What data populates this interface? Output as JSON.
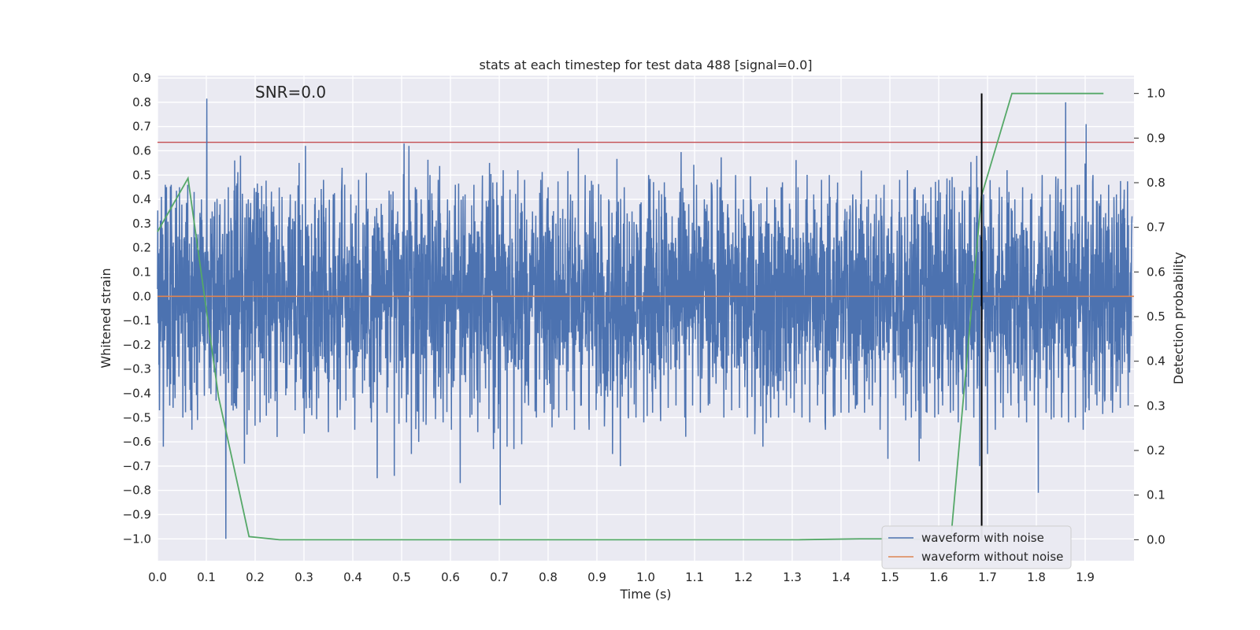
{
  "chart_data": {
    "type": "line",
    "title": "stats at each timestep for test data 488 [signal=0.0]",
    "xlabel": "Time (s)",
    "ylabel": "Whitened strain",
    "y2label": "Detection probability",
    "annotation": "SNR=0.0",
    "xlim": [
      0.0,
      2.0
    ],
    "ylim": [
      -1.09,
      0.91
    ],
    "y2lim": [
      -0.047,
      1.04
    ],
    "x_ticks": [
      "0.0",
      "0.1",
      "0.2",
      "0.3",
      "0.4",
      "0.5",
      "0.6",
      "0.7",
      "0.8",
      "0.9",
      "1.0",
      "1.1",
      "1.2",
      "1.3",
      "1.4",
      "1.5",
      "1.6",
      "1.7",
      "1.8",
      "1.9"
    ],
    "y_ticks": [
      "0.9",
      "0.8",
      "0.7",
      "0.6",
      "0.5",
      "0.4",
      "0.3",
      "0.2",
      "0.1",
      "0.0",
      "−0.1",
      "−0.2",
      "−0.3",
      "−0.4",
      "−0.5",
      "−0.6",
      "−0.7",
      "−0.8",
      "−0.9",
      "−1.0"
    ],
    "y2_ticks": [
      "1.0",
      "0.9",
      "0.8",
      "0.7",
      "0.6",
      "0.5",
      "0.4",
      "0.3",
      "0.2",
      "0.1",
      "0.0"
    ],
    "grid": true,
    "legend_position": "lower right",
    "threshold_line": {
      "y": 0.635,
      "color": "#c44e52"
    },
    "marker_line": {
      "x": 1.688,
      "color": "#000000",
      "y2_range": [
        0.0,
        1.0
      ]
    },
    "series": [
      {
        "name": "waveform with noise",
        "axis": "left",
        "color": "#4c72b0",
        "sample_rate": 2048,
        "points": [
          [
            0.0,
            0.03
          ],
          [
            0.004,
            -0.47
          ],
          [
            0.008,
            0.41
          ],
          [
            0.012,
            -0.62
          ],
          [
            0.016,
            0.46
          ],
          [
            0.022,
            -0.3
          ],
          [
            0.028,
            0.46
          ],
          [
            0.036,
            -0.42
          ],
          [
            0.045,
            0.45
          ],
          [
            0.052,
            -0.5
          ],
          [
            0.062,
            0.46
          ],
          [
            0.068,
            -0.47
          ],
          [
            0.075,
            0.43
          ],
          [
            0.082,
            -0.51
          ],
          [
            0.09,
            0.4
          ],
          [
            0.096,
            -0.41
          ],
          [
            0.101,
            0.815
          ],
          [
            0.106,
            -0.38
          ],
          [
            0.112,
            0.35
          ],
          [
            0.12,
            -0.43
          ],
          [
            0.128,
            0.38
          ],
          [
            0.136,
            -0.32
          ],
          [
            0.14,
            -1.0
          ],
          [
            0.145,
            0.45
          ],
          [
            0.152,
            -0.45
          ],
          [
            0.158,
            0.56
          ],
          [
            0.164,
            -0.38
          ],
          [
            0.17,
            0.58
          ],
          [
            0.178,
            -0.69
          ],
          [
            0.186,
            0.4
          ],
          [
            0.194,
            -0.35
          ],
          [
            0.202,
            0.43
          ],
          [
            0.21,
            -0.52
          ],
          [
            0.218,
            0.38
          ],
          [
            0.228,
            -0.44
          ],
          [
            0.238,
            0.37
          ],
          [
            0.245,
            -0.58
          ],
          [
            0.255,
            0.41
          ],
          [
            0.265,
            -0.38
          ],
          [
            0.272,
            0.42
          ],
          [
            0.282,
            -0.47
          ],
          [
            0.29,
            0.55
          ],
          [
            0.298,
            -0.42
          ],
          [
            0.303,
            0.62
          ],
          [
            0.312,
            -0.46
          ],
          [
            0.322,
            0.38
          ],
          [
            0.33,
            -0.42
          ],
          [
            0.34,
            0.48
          ],
          [
            0.35,
            -0.56
          ],
          [
            0.36,
            0.42
          ],
          [
            0.368,
            -0.5
          ],
          [
            0.378,
            0.53
          ],
          [
            0.386,
            -0.43
          ],
          [
            0.396,
            0.42
          ],
          [
            0.404,
            -0.55
          ],
          [
            0.412,
            0.48
          ],
          [
            0.42,
            -0.4
          ],
          [
            0.43,
            0.35
          ],
          [
            0.438,
            -0.52
          ],
          [
            0.445,
            0.33
          ],
          [
            0.45,
            -0.75
          ],
          [
            0.46,
            0.3
          ],
          [
            0.47,
            -0.48
          ],
          [
            0.478,
            0.42
          ],
          [
            0.485,
            -0.74
          ],
          [
            0.492,
            0.35
          ],
          [
            0.5,
            -0.42
          ],
          [
            0.505,
            0.63
          ],
          [
            0.51,
            -0.52
          ],
          [
            0.515,
            0.62
          ],
          [
            0.52,
            -0.65
          ],
          [
            0.528,
            0.45
          ],
          [
            0.535,
            -0.6
          ],
          [
            0.54,
            0.4
          ],
          [
            0.55,
            -0.53
          ],
          [
            0.558,
            0.5
          ],
          [
            0.566,
            -0.42
          ],
          [
            0.575,
            0.48
          ],
          [
            0.585,
            -0.52
          ],
          [
            0.594,
            0.4
          ],
          [
            0.602,
            -0.55
          ],
          [
            0.61,
            0.46
          ],
          [
            0.62,
            -0.77
          ],
          [
            0.63,
            0.42
          ],
          [
            0.64,
            -0.5
          ],
          [
            0.648,
            0.46
          ],
          [
            0.656,
            -0.56
          ],
          [
            0.665,
            0.4
          ],
          [
            0.672,
            -0.38
          ],
          [
            0.68,
            0.55
          ],
          [
            0.688,
            -0.63
          ],
          [
            0.695,
            0.47
          ],
          [
            0.702,
            -0.86
          ],
          [
            0.708,
            0.52
          ],
          [
            0.716,
            -0.62
          ],
          [
            0.722,
            0.44
          ],
          [
            0.73,
            -0.63
          ],
          [
            0.738,
            0.52
          ],
          [
            0.746,
            -0.61
          ],
          [
            0.752,
            0.48
          ],
          [
            0.76,
            -0.45
          ],
          [
            0.768,
            0.35
          ],
          [
            0.776,
            -0.5
          ],
          [
            0.785,
            0.48
          ],
          [
            0.792,
            -0.48
          ],
          [
            0.8,
            0.45
          ],
          [
            0.808,
            -0.54
          ],
          [
            0.816,
            0.3
          ],
          [
            0.822,
            -0.5
          ],
          [
            0.83,
            0.36
          ],
          [
            0.838,
            -0.47
          ],
          [
            0.846,
            0.42
          ],
          [
            0.854,
            -0.55
          ],
          [
            0.862,
            0.61
          ],
          [
            0.868,
            -0.45
          ],
          [
            0.876,
            0.5
          ],
          [
            0.884,
            -0.55
          ],
          [
            0.892,
            0.46
          ],
          [
            0.9,
            -0.4
          ],
          [
            0.908,
            0.42
          ],
          [
            0.916,
            -0.45
          ],
          [
            0.924,
            0.4
          ],
          [
            0.932,
            -0.65
          ],
          [
            0.94,
            0.35
          ],
          [
            0.948,
            -0.7
          ],
          [
            0.956,
            0.45
          ],
          [
            0.964,
            -0.49
          ],
          [
            0.972,
            0.35
          ],
          [
            0.98,
            -0.5
          ],
          [
            0.988,
            0.38
          ],
          [
            0.996,
            -0.52
          ],
          [
            1.006,
            0.5
          ],
          [
            1.014,
            -0.48
          ],
          [
            1.022,
            0.36
          ],
          [
            1.03,
            -0.45
          ],
          [
            1.038,
            0.47
          ],
          [
            1.046,
            -0.46
          ],
          [
            1.054,
            0.33
          ],
          [
            1.062,
            -0.45
          ],
          [
            1.07,
            0.43
          ],
          [
            1.08,
            -0.5
          ],
          [
            1.088,
            0.38
          ],
          [
            1.096,
            -0.45
          ],
          [
            1.104,
            0.46
          ],
          [
            1.112,
            -0.48
          ],
          [
            1.12,
            0.4
          ],
          [
            1.128,
            -0.45
          ],
          [
            1.136,
            0.41
          ],
          [
            1.144,
            -0.36
          ],
          [
            1.152,
            0.45
          ],
          [
            1.16,
            -0.5
          ],
          [
            1.168,
            0.38
          ],
          [
            1.176,
            -0.47
          ],
          [
            1.184,
            0.5
          ],
          [
            1.192,
            -0.46
          ],
          [
            1.2,
            0.4
          ],
          [
            1.208,
            -0.5
          ],
          [
            1.216,
            0.4
          ],
          [
            1.224,
            -0.45
          ],
          [
            1.232,
            0.38
          ],
          [
            1.24,
            -0.62
          ],
          [
            1.248,
            0.45
          ],
          [
            1.256,
            -0.5
          ],
          [
            1.264,
            0.4
          ],
          [
            1.272,
            -0.5
          ],
          [
            1.28,
            0.47
          ],
          [
            1.288,
            -0.45
          ],
          [
            1.296,
            0.36
          ],
          [
            1.304,
            -0.48
          ],
          [
            1.312,
            0.45
          ],
          [
            1.32,
            -0.5
          ],
          [
            1.328,
            0.4
          ],
          [
            1.336,
            -0.52
          ],
          [
            1.344,
            0.42
          ],
          [
            1.352,
            -0.45
          ],
          [
            1.36,
            0.48
          ],
          [
            1.368,
            -0.55
          ],
          [
            1.376,
            0.5
          ],
          [
            1.384,
            -0.45
          ],
          [
            1.392,
            0.4
          ],
          [
            1.4,
            -0.48
          ],
          [
            1.408,
            0.36
          ],
          [
            1.416,
            -0.48
          ],
          [
            1.424,
            0.42
          ],
          [
            1.432,
            -0.45
          ],
          [
            1.44,
            0.38
          ],
          [
            1.448,
            -0.48
          ],
          [
            1.456,
            0.4
          ],
          [
            1.464,
            -0.45
          ],
          [
            1.472,
            0.42
          ],
          [
            1.48,
            -0.55
          ],
          [
            1.488,
            0.46
          ],
          [
            1.496,
            -0.67
          ],
          [
            1.504,
            0.4
          ],
          [
            1.512,
            -0.42
          ],
          [
            1.52,
            0.48
          ],
          [
            1.528,
            -0.45
          ],
          [
            1.536,
            0.52
          ],
          [
            1.544,
            -0.5
          ],
          [
            1.552,
            0.45
          ],
          [
            1.56,
            -0.68
          ],
          [
            1.568,
            0.42
          ],
          [
            1.576,
            -0.48
          ],
          [
            1.584,
            0.45
          ],
          [
            1.592,
            -0.5
          ],
          [
            1.6,
            0.48
          ],
          [
            1.608,
            -0.45
          ],
          [
            1.616,
            0.42
          ],
          [
            1.624,
            -0.48
          ],
          [
            1.632,
            0.45
          ],
          [
            1.64,
            -0.52
          ],
          [
            1.648,
            0.38
          ],
          [
            1.656,
            -0.47
          ],
          [
            1.664,
            0.42
          ],
          [
            1.672,
            -0.5
          ],
          [
            1.68,
            0.45
          ],
          [
            1.684,
            -0.7
          ],
          [
            1.692,
            0.42
          ],
          [
            1.7,
            -0.65
          ],
          [
            1.708,
            0.4
          ],
          [
            1.716,
            -0.55
          ],
          [
            1.724,
            0.45
          ],
          [
            1.732,
            -0.5
          ],
          [
            1.74,
            0.52
          ],
          [
            1.748,
            -0.45
          ],
          [
            1.756,
            0.4
          ],
          [
            1.764,
            -0.5
          ],
          [
            1.772,
            0.45
          ],
          [
            1.78,
            -0.52
          ],
          [
            1.788,
            0.4
          ],
          [
            1.796,
            -0.45
          ],
          [
            1.804,
            -0.81
          ],
          [
            1.812,
            0.5
          ],
          [
            1.82,
            -0.48
          ],
          [
            1.828,
            0.42
          ],
          [
            1.836,
            -0.5
          ],
          [
            1.844,
            0.45
          ],
          [
            1.852,
            -0.5
          ],
          [
            1.86,
            0.8
          ],
          [
            1.866,
            -0.52
          ],
          [
            1.872,
            0.45
          ],
          [
            1.88,
            -0.5
          ],
          [
            1.888,
            0.46
          ],
          [
            1.896,
            -0.55
          ],
          [
            1.902,
            0.71
          ],
          [
            1.908,
            -0.47
          ],
          [
            1.916,
            0.5
          ],
          [
            1.924,
            -0.45
          ],
          [
            1.932,
            0.42
          ],
          [
            1.94,
            -0.43
          ],
          [
            1.948,
            0.46
          ],
          [
            1.956,
            -0.48
          ],
          [
            1.964,
            0.42
          ],
          [
            1.972,
            -0.46
          ],
          [
            1.98,
            0.44
          ],
          [
            1.988,
            -0.45
          ],
          [
            1.996,
            0.33
          ]
        ]
      },
      {
        "name": "waveform without noise",
        "axis": "left",
        "color": "#dd8452",
        "x": [
          0.0,
          2.0
        ],
        "y": [
          0.0,
          0.0
        ]
      },
      {
        "name": "",
        "axis": "right",
        "color": "#55a868",
        "x": [
          0.0,
          0.0625,
          0.125,
          0.1875,
          0.25,
          0.3125,
          0.375,
          0.4375,
          0.5,
          0.5625,
          0.625,
          0.6875,
          0.75,
          0.8125,
          0.875,
          0.9375,
          1.0,
          1.0625,
          1.125,
          1.1875,
          1.25,
          1.3125,
          1.375,
          1.4375,
          1.5,
          1.5625,
          1.625,
          1.6875,
          1.75,
          1.8125,
          1.875,
          1.9375
        ],
        "y": [
          0.69,
          0.81,
          0.32,
          0.007,
          0.0,
          0.0,
          0.0,
          0.0,
          0.0,
          0.0,
          0.0,
          0.0,
          0.0,
          0.0,
          0.0,
          0.0,
          0.0,
          0.0,
          0.0,
          0.0,
          0.0,
          0.0,
          0.001,
          0.002,
          0.002,
          0.001,
          0.003,
          0.77,
          1.0,
          1.0,
          1.0,
          1.0
        ]
      }
    ]
  }
}
